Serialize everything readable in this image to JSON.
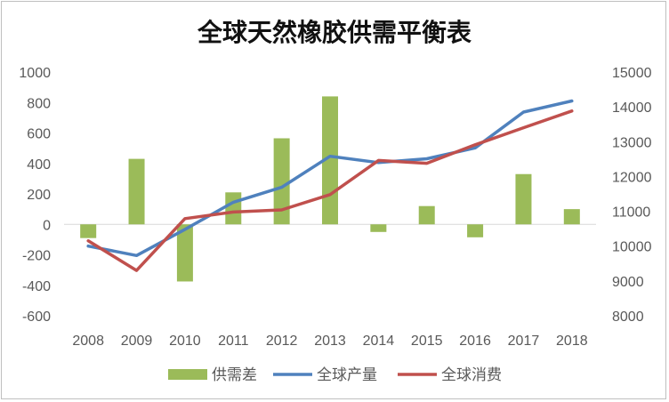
{
  "chart_data": {
    "type": "bar+line",
    "title": "全球天然橡胶供需平衡表",
    "categories": [
      "2008",
      "2009",
      "2010",
      "2011",
      "2012",
      "2013",
      "2014",
      "2015",
      "2016",
      "2017",
      "2018"
    ],
    "left_axis": {
      "min": -600,
      "max": 1000,
      "step": 200,
      "tick_labels": [
        "-600",
        "-400",
        "-200",
        "0",
        "200",
        "400",
        "600",
        "800",
        "1000"
      ]
    },
    "right_axis": {
      "min": 8000,
      "max": 15000,
      "step": 1000,
      "tick_labels": [
        "8000",
        "9000",
        "10000",
        "11000",
        "12000",
        "13000",
        "14000",
        "15000"
      ]
    },
    "series": [
      {
        "name": "供需差",
        "type": "bar",
        "axis": "left",
        "color": "#9bbb59",
        "values": [
          -90,
          430,
          -375,
          210,
          565,
          840,
          -50,
          120,
          -85,
          330,
          100
        ]
      },
      {
        "name": "全球产量",
        "type": "line",
        "axis": "right",
        "color": "#4f81bd",
        "values": [
          10000,
          9730,
          10480,
          11260,
          11690,
          12580,
          12400,
          12510,
          12820,
          13850,
          14170
        ]
      },
      {
        "name": "全球消费",
        "type": "line",
        "axis": "right",
        "color": "#c0504d",
        "values": [
          10150,
          9300,
          10790,
          10980,
          11040,
          11480,
          12460,
          12380,
          12910,
          13400,
          13880
        ]
      }
    ],
    "legend_position": "bottom",
    "grid": false
  }
}
